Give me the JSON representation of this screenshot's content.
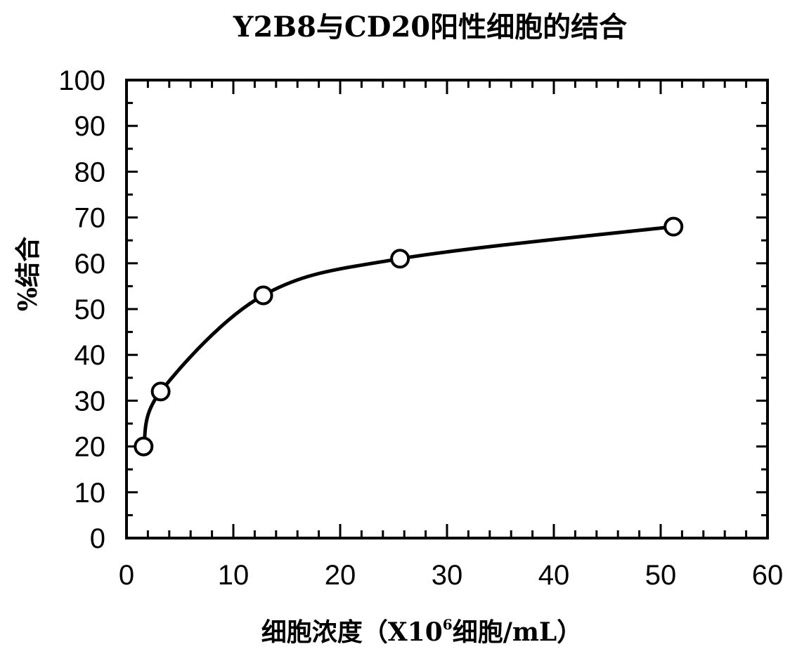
{
  "chart_data": {
    "type": "line",
    "title": "Y2B8与CD20阳性细胞的结合",
    "xlabel": {
      "prefix": "细胞浓度（X10",
      "superscript": "6",
      "suffix": "细胞/mL）"
    },
    "ylabel": "%结合",
    "xlim": [
      0,
      60
    ],
    "ylim": [
      0,
      100
    ],
    "x_ticks": [
      "0",
      "10",
      "20",
      "30",
      "40",
      "50",
      "60"
    ],
    "y_ticks": [
      "0",
      "10",
      "20",
      "30",
      "40",
      "50",
      "60",
      "70",
      "80",
      "90",
      "100"
    ],
    "x_tick_values": [
      0,
      10,
      20,
      30,
      40,
      50,
      60
    ],
    "y_tick_values": [
      0,
      10,
      20,
      30,
      40,
      50,
      60,
      70,
      80,
      90,
      100
    ],
    "x_minor_step": 2,
    "y_minor_step": 5,
    "grid": false,
    "legend": "none",
    "series": [
      {
        "x": [
          1.6,
          3.2,
          12.8,
          25.6,
          51.2
        ],
        "y": [
          20,
          32,
          53,
          61,
          68
        ]
      }
    ]
  }
}
